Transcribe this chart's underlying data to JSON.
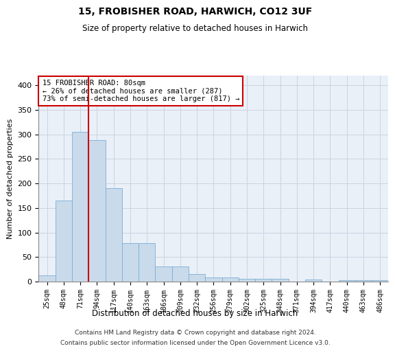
{
  "title1": "15, FROBISHER ROAD, HARWICH, CO12 3UF",
  "title2": "Size of property relative to detached houses in Harwich",
  "xlabel": "Distribution of detached houses by size in Harwich",
  "ylabel": "Number of detached properties",
  "categories": [
    "25sqm",
    "48sqm",
    "71sqm",
    "94sqm",
    "117sqm",
    "140sqm",
    "163sqm",
    "186sqm",
    "209sqm",
    "232sqm",
    "256sqm",
    "279sqm",
    "302sqm",
    "325sqm",
    "348sqm",
    "371sqm",
    "394sqm",
    "417sqm",
    "440sqm",
    "463sqm",
    "486sqm"
  ],
  "values": [
    13,
    165,
    305,
    288,
    190,
    78,
    78,
    31,
    31,
    16,
    9,
    8,
    5,
    5,
    5,
    0,
    4,
    0,
    3,
    3,
    3
  ],
  "bar_color": "#c9daea",
  "bar_edgecolor": "#7aaed6",
  "red_line_index": 2.5,
  "annotation_text": "15 FROBISHER ROAD: 80sqm\n← 26% of detached houses are smaller (287)\n73% of semi-detached houses are larger (817) →",
  "annotation_box_color": "white",
  "annotation_box_edgecolor": "#cc0000",
  "redline_color": "#cc0000",
  "footer1": "Contains HM Land Registry data © Crown copyright and database right 2024.",
  "footer2": "Contains public sector information licensed under the Open Government Licence v3.0.",
  "ylim": [
    0,
    420
  ],
  "yticks": [
    0,
    50,
    100,
    150,
    200,
    250,
    300,
    350,
    400
  ],
  "grid_color": "#c8d4e0",
  "background_color": "#eaf0f8"
}
